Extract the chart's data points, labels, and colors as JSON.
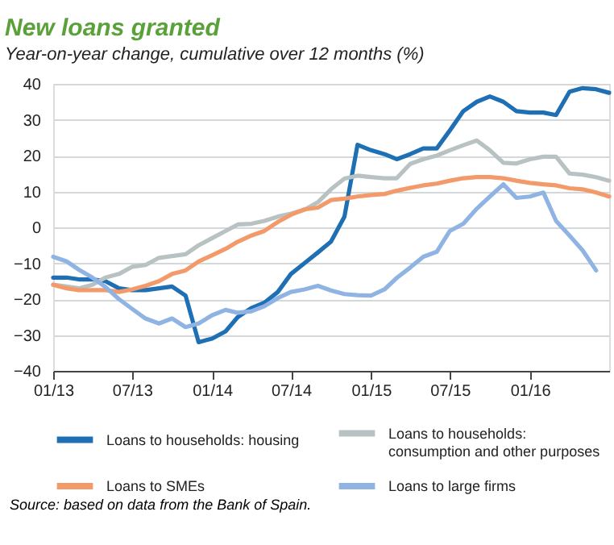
{
  "chart_data": {
    "type": "line",
    "title": "New loans granted",
    "subtitle": "Year-on-year change, cumulative over 12 months (%)",
    "x": [
      "2013-01",
      "2013-02",
      "2013-03",
      "2013-04",
      "2013-05",
      "2013-06",
      "2013-07",
      "2013-08",
      "2013-09",
      "2013-10",
      "2013-11",
      "2013-12",
      "2014-01",
      "2014-02",
      "2014-03",
      "2014-04",
      "2014-05",
      "2014-06",
      "2014-07",
      "2014-08",
      "2014-09",
      "2014-10",
      "2014-11",
      "2014-12",
      "2015-01",
      "2015-02",
      "2015-03",
      "2015-04",
      "2015-05",
      "2015-06",
      "2015-07",
      "2015-08",
      "2015-09",
      "2015-10",
      "2015-11",
      "2015-12",
      "2016-01",
      "2016-02",
      "2016-03",
      "2016-04",
      "2016-05",
      "2016-06",
      "2016-07"
    ],
    "series": [
      {
        "name": "Loans to households: housing",
        "color": "#1f6fb4",
        "values": [
          -14,
          -14,
          -14.5,
          -14.5,
          -15,
          -17,
          -17.5,
          -17.5,
          -17,
          -16.5,
          -19,
          -32,
          -31,
          -29,
          -25,
          -22.5,
          -21,
          -18,
          -13,
          -10,
          -7,
          -4,
          3,
          23,
          21.5,
          20.4,
          19,
          20.4,
          22,
          22,
          27,
          32.4,
          35,
          36.5,
          35,
          32.4,
          32,
          32,
          31.3,
          37.8,
          38.8,
          38.5,
          37.5
        ]
      },
      {
        "name": "Loans to households: consumption and other purposes",
        "color": "#b8c2c2",
        "values": [
          -16,
          -16.5,
          -17,
          -16,
          -14,
          -13,
          -11,
          -10.5,
          -8.5,
          -8,
          -7.5,
          -5,
          -3,
          -1,
          0.8,
          1,
          1.8,
          3,
          3.8,
          4.9,
          7,
          10.6,
          13.6,
          14.4,
          14,
          13.7,
          13.7,
          17.7,
          19,
          20,
          21.5,
          22.9,
          24.2,
          21.5,
          18,
          17.8,
          19,
          19.7,
          19.7,
          15,
          14.7,
          14,
          13
        ]
      },
      {
        "name": "Loans to SMEs",
        "color": "#f39a6b",
        "values": [
          -16,
          -17,
          -17.5,
          -17.5,
          -17.5,
          -18,
          -17.3,
          -16.3,
          -15,
          -13,
          -12,
          -9.5,
          -7.8,
          -6,
          -4,
          -2.3,
          -1,
          1.5,
          3.5,
          5,
          5.5,
          7.6,
          8,
          8.6,
          9,
          9.3,
          10.2,
          11,
          11.7,
          12.2,
          13,
          13.7,
          14,
          14,
          13.7,
          13,
          12.4,
          12,
          11.7,
          10.9,
          10.6,
          9.7,
          8.6
        ]
      },
      {
        "name": "Loans to large firms",
        "color": "#8fb4e3",
        "values": [
          -8.2,
          -9.5,
          -11.8,
          -14,
          -16.6,
          -20,
          -22.7,
          -25.4,
          -26.8,
          -25.4,
          -27.8,
          -26.8,
          -24.5,
          -23,
          -23.8,
          -23.4,
          -22,
          -19.7,
          -18,
          -17.3,
          -16.3,
          -17.6,
          -18.6,
          -18.9,
          -19,
          -17.3,
          -14.1,
          -11.2,
          -8.2,
          -6.8,
          -1,
          1,
          5.2,
          8.6,
          12,
          8.2,
          8.6,
          9.7,
          1.8,
          -2.3,
          -6.4,
          -12,
          null
        ]
      }
    ],
    "xlim": [
      "2013-01",
      "2016-07"
    ],
    "xticks": [
      {
        "value": "2013-01",
        "label": "01/13"
      },
      {
        "value": "2013-07",
        "label": "07/13"
      },
      {
        "value": "2014-01",
        "label": "01/14"
      },
      {
        "value": "2014-07",
        "label": "07/14"
      },
      {
        "value": "2015-01",
        "label": "01/15"
      },
      {
        "value": "2015-07",
        "label": "07/15"
      },
      {
        "value": "2016-01",
        "label": "01/16"
      }
    ],
    "ylim": [
      -40,
      40
    ],
    "yticks": [
      -40,
      -30,
      -20,
      -10,
      0,
      10,
      20,
      30,
      40
    ],
    "grid": "y",
    "legend": "bottom",
    "line_style": "solid",
    "annotations": [
      "Source: based on data from the Bank of Spain."
    ]
  }
}
